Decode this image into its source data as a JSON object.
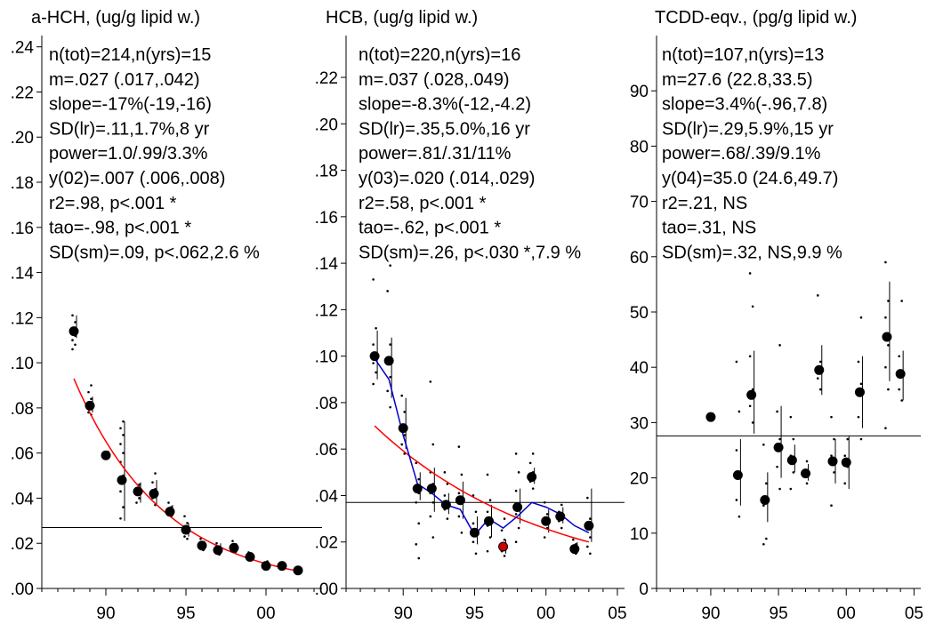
{
  "chart_data": [
    {
      "type": "scatter",
      "title": "a-HCH, (ug/g lipid w.)",
      "stats": [
        "n(tot)=214,n(yrs)=15",
        "m=.027 (.017,.042)",
        "slope=-17%(-19,-16)",
        "SD(lr)=.11,1.7%,8 yr",
        "power=1.0/.99/3.3%",
        "y(02)=.007 (.006,.008)",
        "r2=.98, p<.001 *",
        "tao=-.98, p<.001 *",
        "SD(sm)=.09, p<.062,2.6 %"
      ],
      "xlim": [
        1986,
        2003.5
      ],
      "ylim": [
        0,
        0.245
      ],
      "x_ticks": [
        1990,
        1995,
        2000
      ],
      "x_tick_labels": [
        "90",
        "95",
        "00"
      ],
      "y_ticks": [
        0,
        0.02,
        0.04,
        0.06,
        0.08,
        0.1,
        0.12,
        0.14,
        0.16,
        0.18,
        0.2,
        0.22,
        0.24
      ],
      "y_tick_labels": [
        ".00",
        ".02",
        ".04",
        ".06",
        ".08",
        ".10",
        ".12",
        ".14",
        ".16",
        ".18",
        ".20",
        ".22",
        ".24"
      ],
      "mean_line": 0.027,
      "annual_means": {
        "x": [
          1988,
          1989,
          1990,
          1991,
          1992,
          1993,
          1994,
          1995,
          1996,
          1997,
          1998,
          1999,
          2000,
          2001,
          2002
        ],
        "y": [
          0.114,
          0.081,
          0.059,
          0.048,
          0.043,
          0.042,
          0.034,
          0.026,
          0.019,
          0.017,
          0.018,
          0.014,
          0.01,
          0.01,
          0.008
        ],
        "ci_low": [
          0.111,
          0.078,
          0.058,
          0.03,
          0.038,
          0.037,
          0.032,
          0.023,
          0.017,
          0.015,
          0.016,
          0.013,
          0.009,
          0.009,
          0.008
        ],
        "ci_high": [
          0.121,
          0.085,
          0.061,
          0.074,
          0.047,
          0.048,
          0.037,
          0.029,
          0.021,
          0.02,
          0.02,
          0.015,
          0.011,
          0.011,
          0.009
        ]
      },
      "individual_points": [
        [
          1988,
          0.121
        ],
        [
          1988,
          0.118
        ],
        [
          1988,
          0.115
        ],
        [
          1988,
          0.112
        ],
        [
          1988,
          0.11
        ],
        [
          1988,
          0.108
        ],
        [
          1988,
          0.106
        ],
        [
          1989,
          0.09
        ],
        [
          1989,
          0.087
        ],
        [
          1989,
          0.084
        ],
        [
          1989,
          0.082
        ],
        [
          1989,
          0.08
        ],
        [
          1989,
          0.078
        ],
        [
          1989,
          0.077
        ],
        [
          1990,
          0.06
        ],
        [
          1990,
          0.059
        ],
        [
          1990,
          0.058
        ],
        [
          1991,
          0.074
        ],
        [
          1991,
          0.071
        ],
        [
          1991,
          0.068
        ],
        [
          1991,
          0.064
        ],
        [
          1991,
          0.06
        ],
        [
          1991,
          0.056
        ],
        [
          1991,
          0.05
        ],
        [
          1991,
          0.043
        ],
        [
          1991,
          0.036
        ],
        [
          1991,
          0.031
        ],
        [
          1992,
          0.046
        ],
        [
          1992,
          0.043
        ],
        [
          1992,
          0.04
        ],
        [
          1992,
          0.038
        ],
        [
          1993,
          0.051
        ],
        [
          1993,
          0.047
        ],
        [
          1993,
          0.044
        ],
        [
          1993,
          0.04
        ],
        [
          1993,
          0.037
        ],
        [
          1994,
          0.038
        ],
        [
          1994,
          0.036
        ],
        [
          1994,
          0.034
        ],
        [
          1994,
          0.032
        ],
        [
          1995,
          0.032
        ],
        [
          1995,
          0.029
        ],
        [
          1995,
          0.027
        ],
        [
          1995,
          0.025
        ],
        [
          1995,
          0.023
        ],
        [
          1995,
          0.022
        ],
        [
          1996,
          0.022
        ],
        [
          1996,
          0.02
        ],
        [
          1996,
          0.018
        ],
        [
          1996,
          0.017
        ],
        [
          1997,
          0.02
        ],
        [
          1997,
          0.018
        ],
        [
          1997,
          0.016
        ],
        [
          1997,
          0.015
        ],
        [
          1998,
          0.021
        ],
        [
          1998,
          0.019
        ],
        [
          1998,
          0.017
        ],
        [
          1998,
          0.016
        ],
        [
          1999,
          0.016
        ],
        [
          1999,
          0.015
        ],
        [
          1999,
          0.013
        ],
        [
          2000,
          0.012
        ],
        [
          2000,
          0.011
        ],
        [
          2000,
          0.01
        ],
        [
          2000,
          0.009
        ],
        [
          2001,
          0.011
        ],
        [
          2001,
          0.01
        ],
        [
          2001,
          0.009
        ],
        [
          2002,
          0.009
        ],
        [
          2002,
          0.008
        ]
      ],
      "trend_line": {
        "color": "#ff0000",
        "x": [
          1988,
          2002
        ],
        "y_start": 0.093,
        "y_end": 0.0077
      },
      "smooth_line": null
    },
    {
      "type": "scatter",
      "title": "HCB, (ug/g lipid w.)",
      "stats": [
        "n(tot)=220,n(yrs)=16",
        "m=.037 (.028,.049)",
        "slope=-8.3%(-12,-4.2)",
        "SD(lr)=.35,5.0%,16 yr",
        "power=.81/.31/11%",
        "y(03)=.020 (.014,.029)",
        "r2=.58, p<.001 *",
        "tao=-.62, p<.001 *",
        "SD(sm)=.26, p<.030 *,7.9 %"
      ],
      "xlim": [
        1986,
        2005.5
      ],
      "ylim": [
        0,
        0.238
      ],
      "x_ticks": [
        1990,
        1995,
        2000,
        2005
      ],
      "x_tick_labels": [
        "90",
        "95",
        "00",
        "05"
      ],
      "y_ticks": [
        0,
        0.02,
        0.04,
        0.06,
        0.08,
        0.1,
        0.12,
        0.14,
        0.16,
        0.18,
        0.2,
        0.22
      ],
      "y_tick_labels": [
        ".00",
        ".02",
        ".04",
        ".06",
        ".08",
        ".10",
        ".12",
        ".14",
        ".16",
        ".18",
        ".20",
        ".22"
      ],
      "mean_line": 0.037,
      "annual_means": {
        "x": [
          1988,
          1989,
          1990,
          1991,
          1992,
          1993,
          1994,
          1995,
          1996,
          1997,
          1998,
          1999,
          2000,
          2001,
          2002,
          2003
        ],
        "y": [
          0.1,
          0.098,
          0.069,
          0.043,
          0.043,
          0.036,
          0.038,
          0.024,
          0.029,
          0.018,
          0.035,
          0.048,
          0.029,
          0.031,
          0.017,
          0.027
        ],
        "ci_low": [
          0.09,
          0.082,
          0.06,
          0.038,
          0.033,
          0.032,
          0.03,
          0.019,
          0.022,
          0.015,
          0.028,
          0.045,
          0.024,
          0.028,
          0.015,
          0.02
        ],
        "ci_high": [
          0.111,
          0.108,
          0.082,
          0.05,
          0.052,
          0.041,
          0.046,
          0.031,
          0.036,
          0.021,
          0.043,
          0.052,
          0.034,
          0.035,
          0.02,
          0.043
        ]
      },
      "highlighted_point": {
        "x": 1997,
        "y": 0.018,
        "color": "#cc0000"
      },
      "individual_points": [
        [
          1988,
          0.133
        ],
        [
          1988,
          0.112
        ],
        [
          1988,
          0.105
        ],
        [
          1988,
          0.101
        ],
        [
          1988,
          0.097
        ],
        [
          1988,
          0.093
        ],
        [
          1988,
          0.088
        ],
        [
          1989,
          0.139
        ],
        [
          1989,
          0.128
        ],
        [
          1989,
          0.105
        ],
        [
          1989,
          0.098
        ],
        [
          1989,
          0.091
        ],
        [
          1989,
          0.085
        ],
        [
          1989,
          0.078
        ],
        [
          1990,
          0.083
        ],
        [
          1990,
          0.076
        ],
        [
          1990,
          0.07
        ],
        [
          1990,
          0.066
        ],
        [
          1990,
          0.062
        ],
        [
          1990,
          0.058
        ],
        [
          1991,
          0.054
        ],
        [
          1991,
          0.047
        ],
        [
          1991,
          0.044
        ],
        [
          1991,
          0.041
        ],
        [
          1991,
          0.037
        ],
        [
          1991,
          0.028
        ],
        [
          1991,
          0.019
        ],
        [
          1991,
          0.013
        ],
        [
          1992,
          0.089
        ],
        [
          1992,
          0.062
        ],
        [
          1992,
          0.05
        ],
        [
          1992,
          0.045
        ],
        [
          1992,
          0.041
        ],
        [
          1992,
          0.037
        ],
        [
          1992,
          0.031
        ],
        [
          1992,
          0.022
        ],
        [
          1993,
          0.05
        ],
        [
          1993,
          0.045
        ],
        [
          1993,
          0.04
        ],
        [
          1993,
          0.037
        ],
        [
          1993,
          0.034
        ],
        [
          1993,
          0.03
        ],
        [
          1994,
          0.061
        ],
        [
          1994,
          0.049
        ],
        [
          1994,
          0.041
        ],
        [
          1994,
          0.037
        ],
        [
          1994,
          0.031
        ],
        [
          1994,
          0.024
        ],
        [
          1995,
          0.04
        ],
        [
          1995,
          0.033
        ],
        [
          1995,
          0.028
        ],
        [
          1995,
          0.024
        ],
        [
          1995,
          0.02
        ],
        [
          1995,
          0.015
        ],
        [
          1996,
          0.049
        ],
        [
          1996,
          0.038
        ],
        [
          1996,
          0.033
        ],
        [
          1996,
          0.03
        ],
        [
          1996,
          0.027
        ],
        [
          1996,
          0.022
        ],
        [
          1996,
          0.016
        ],
        [
          1997,
          0.03
        ],
        [
          1997,
          0.025
        ],
        [
          1997,
          0.021
        ],
        [
          1997,
          0.016
        ],
        [
          1997,
          0.014
        ],
        [
          1998,
          0.058
        ],
        [
          1998,
          0.05
        ],
        [
          1998,
          0.042
        ],
        [
          1998,
          0.036
        ],
        [
          1998,
          0.032
        ],
        [
          1998,
          0.026
        ],
        [
          1998,
          0.02
        ],
        [
          1999,
          0.058
        ],
        [
          1999,
          0.054
        ],
        [
          1999,
          0.05
        ],
        [
          1999,
          0.046
        ],
        [
          1999,
          0.043
        ],
        [
          2000,
          0.037
        ],
        [
          2000,
          0.032
        ],
        [
          2000,
          0.029
        ],
        [
          2000,
          0.026
        ],
        [
          2000,
          0.022
        ],
        [
          2001,
          0.036
        ],
        [
          2001,
          0.033
        ],
        [
          2001,
          0.031
        ],
        [
          2001,
          0.029
        ],
        [
          2001,
          0.026
        ],
        [
          2002,
          0.021
        ],
        [
          2002,
          0.019
        ],
        [
          2002,
          0.017
        ],
        [
          2002,
          0.015
        ],
        [
          2003,
          0.039
        ],
        [
          2003,
          0.03
        ],
        [
          2003,
          0.026
        ],
        [
          2003,
          0.022
        ],
        [
          2003,
          0.018
        ],
        [
          2003,
          0.015
        ]
      ],
      "trend_line": {
        "color": "#ff0000",
        "x": [
          1988,
          2003
        ],
        "y_start": 0.07,
        "y_end": 0.02
      },
      "smooth_line": {
        "color": "#0000cc",
        "x": [
          1988,
          1989,
          1990,
          1991,
          1992,
          1993,
          1994,
          1995,
          1996,
          1997,
          1998,
          1999,
          2000,
          2001,
          2002,
          2003
        ],
        "y": [
          0.099,
          0.09,
          0.066,
          0.045,
          0.041,
          0.036,
          0.034,
          0.023,
          0.03,
          0.026,
          0.031,
          0.037,
          0.035,
          0.032,
          0.027,
          0.024
        ]
      }
    },
    {
      "type": "scatter",
      "title": "TCDD-eqv., (pg/g lipid w.)",
      "stats": [
        "n(tot)=107,n(yrs)=13",
        "m=27.6 (22.8,33.5)",
        "slope=3.4%(-.96,7.8)",
        "SD(lr)=.29,5.9%,15 yr",
        "power=.68/.39/9.1%",
        "y(04)=35.0 (24.6,49.7)",
        "r2=.21, NS",
        "tao=.31, NS",
        "SD(sm)=.32, NS,9.9 %"
      ],
      "xlim": [
        1986,
        2005.5
      ],
      "ylim": [
        0,
        100
      ],
      "x_ticks": [
        1990,
        1995,
        2000,
        2005
      ],
      "x_tick_labels": [
        "90",
        "95",
        "00",
        "05"
      ],
      "y_ticks": [
        0,
        10,
        20,
        30,
        40,
        50,
        60,
        70,
        80,
        90
      ],
      "y_tick_labels": [
        "0",
        "10",
        "20",
        "30",
        "40",
        "50",
        "60",
        "70",
        "80",
        "90"
      ],
      "mean_line": 27.6,
      "annual_means": {
        "x": [
          1990,
          1992,
          1993,
          1994,
          1995,
          1996,
          1997,
          1998,
          1999,
          2000,
          2001,
          2003,
          2004
        ],
        "y": [
          31.0,
          20.5,
          35.0,
          16.0,
          25.5,
          23.2,
          20.8,
          39.5,
          23.0,
          22.8,
          35.5,
          45.5,
          38.8
        ],
        "ci_low": [
          31.0,
          15.0,
          28.0,
          12.0,
          20.0,
          21.0,
          19.5,
          35.0,
          19.0,
          18.0,
          29.0,
          37.5,
          34.0
        ],
        "ci_high": [
          31.0,
          27.0,
          43.0,
          21.0,
          33.0,
          26.0,
          22.5,
          44.0,
          27.0,
          27.5,
          42.0,
          55.5,
          43.0
        ]
      },
      "individual_points": [
        [
          1992,
          41.0
        ],
        [
          1992,
          32.0
        ],
        [
          1992,
          25.0
        ],
        [
          1992,
          20.0
        ],
        [
          1992,
          16.0
        ],
        [
          1992,
          13.0
        ],
        [
          1993,
          57.0
        ],
        [
          1993,
          51.0
        ],
        [
          1993,
          42.0
        ],
        [
          1993,
          36.0
        ],
        [
          1993,
          33.0
        ],
        [
          1993,
          30.0
        ],
        [
          1994,
          26.0
        ],
        [
          1994,
          19.0
        ],
        [
          1994,
          15.0
        ],
        [
          1994,
          9.0
        ],
        [
          1994,
          8.0
        ],
        [
          1995,
          44.0
        ],
        [
          1995,
          32.0
        ],
        [
          1995,
          27.0
        ],
        [
          1995,
          22.0
        ],
        [
          1995,
          18.0
        ],
        [
          1996,
          31.0
        ],
        [
          1996,
          27.0
        ],
        [
          1996,
          24.0
        ],
        [
          1996,
          21.0
        ],
        [
          1996,
          18.0
        ],
        [
          1997,
          23.0
        ],
        [
          1997,
          21.0
        ],
        [
          1997,
          19.0
        ],
        [
          1998,
          53.0
        ],
        [
          1998,
          41.0
        ],
        [
          1998,
          38.0
        ],
        [
          1998,
          36.0
        ],
        [
          1999,
          31.0
        ],
        [
          1999,
          27.0
        ],
        [
          1999,
          24.0
        ],
        [
          1999,
          21.0
        ],
        [
          1999,
          15.0
        ],
        [
          2000,
          27.0
        ],
        [
          2000,
          24.0
        ],
        [
          2000,
          22.0
        ],
        [
          2000,
          19.0
        ],
        [
          2001,
          49.0
        ],
        [
          2001,
          41.0
        ],
        [
          2001,
          37.0
        ],
        [
          2001,
          31.0
        ],
        [
          2001,
          27.0
        ],
        [
          2003,
          59.0
        ],
        [
          2003,
          52.0
        ],
        [
          2003,
          49.0
        ],
        [
          2003,
          44.0
        ],
        [
          2003,
          40.0
        ],
        [
          2003,
          36.0
        ],
        [
          2003,
          29.0
        ],
        [
          2004,
          52.0
        ],
        [
          2004,
          42.0
        ],
        [
          2004,
          39.0
        ],
        [
          2004,
          36.0
        ],
        [
          2004,
          34.0
        ]
      ],
      "trend_line": null,
      "smooth_line": null
    }
  ]
}
